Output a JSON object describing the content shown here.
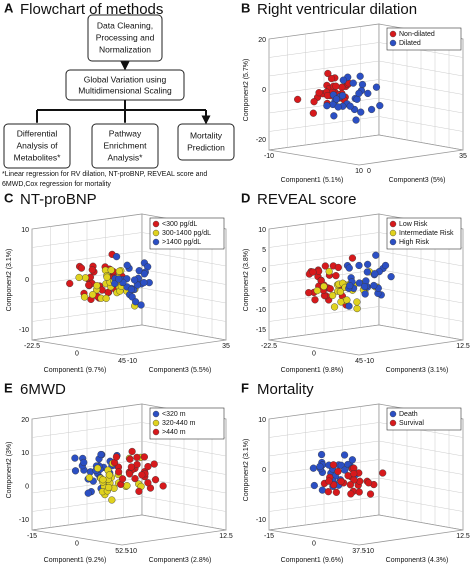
{
  "flowchart": {
    "letter": "A",
    "title": "Flowchart of methods",
    "top_box": [
      "Data Cleaning,",
      "Processing and",
      "Normalization"
    ],
    "middle_box": [
      "Global Variation using",
      "Multidimensional Scaling"
    ],
    "bottom_boxes": [
      [
        "Differential",
        "Analysis of",
        "Metabolites*"
      ],
      [
        "Pathway",
        "Enrichment",
        "Analysis*"
      ],
      [
        "Mortality",
        "Prediction"
      ]
    ],
    "footnote": [
      "*Linear regression for RV dilation, NT-proBNP, REVEAL score and",
      "6MWD,Cox regression for mortality"
    ]
  },
  "panels": [
    {
      "letter": "B",
      "title": "Right ventricular dilation",
      "legend": [
        {
          "name": "Non-dilated",
          "color": "#d7191c"
        },
        {
          "name": "Dilated",
          "color": "#2b4fc4"
        }
      ],
      "y_label": "Component2 (5.7%)",
      "y_ticks": [
        20,
        0,
        -20
      ],
      "x1_label": "Component1 (5.1%)",
      "x1_ticks": [
        -10,
        10
      ],
      "x3_label": "Component3 (5%)",
      "x3_ticks": [
        0,
        35
      ]
    },
    {
      "letter": "C",
      "title": "NT-proBNP",
      "legend": [
        {
          "name": "<300 pg/dL",
          "color": "#d7191c"
        },
        {
          "name": "300-1400 pg/dL",
          "color": "#e0d21f"
        },
        {
          "name": ">1400 pg/dL",
          "color": "#2b4fc4"
        }
      ],
      "y_label": "Component2 (3.1%)",
      "y_ticks": [
        10,
        0,
        -10
      ],
      "x1_label": "Component1 (9.7%)",
      "x1_ticks": [
        -22.5,
        0,
        45
      ],
      "x3_label": "Component3 (5.5%)",
      "x3_ticks": [
        -10,
        35
      ]
    },
    {
      "letter": "D",
      "title": "REVEAL score",
      "legend": [
        {
          "name": "Low Risk",
          "color": "#d7191c"
        },
        {
          "name": "Intermediate Risk",
          "color": "#e0d21f"
        },
        {
          "name": "High Risk",
          "color": "#2b4fc4"
        }
      ],
      "y_label": "Component2 (3.8%)",
      "y_ticks": [
        10,
        5,
        0,
        -5,
        -10,
        -15
      ],
      "x1_label": "Component1 (9.8%)",
      "x1_ticks": [
        -22.5,
        0,
        45
      ],
      "x3_label": "Component3 (3.1%)",
      "x3_ticks": [
        -10,
        12.5
      ]
    },
    {
      "letter": "E",
      "title": "6MWD",
      "legend": [
        {
          "name": "<320 m",
          "color": "#2b4fc4"
        },
        {
          "name": "320-440 m",
          "color": "#e0d21f"
        },
        {
          "name": ">440 m",
          "color": "#d7191c"
        }
      ],
      "y_label": "Component2 (3%)",
      "y_ticks": [
        20,
        10,
        0,
        -10
      ],
      "x1_label": "Component1 (9.2%)",
      "x1_ticks": [
        -15,
        0,
        52.5
      ],
      "x3_label": "Component3 (2.8%)",
      "x3_ticks": [
        -10,
        12.5
      ]
    },
    {
      "letter": "F",
      "title": "Mortality",
      "legend": [
        {
          "name": "Death",
          "color": "#2b4fc4"
        },
        {
          "name": "Survival",
          "color": "#d7191c"
        }
      ],
      "y_label": "Component2 (3.1%)",
      "y_ticks": [
        10,
        0,
        -10
      ],
      "x1_label": "Component1 (9.6%)",
      "x1_ticks": [
        -15,
        0,
        37.5
      ],
      "x3_label": "Component3 (4.3%)",
      "x3_ticks": [
        -10,
        12.5
      ]
    }
  ]
}
